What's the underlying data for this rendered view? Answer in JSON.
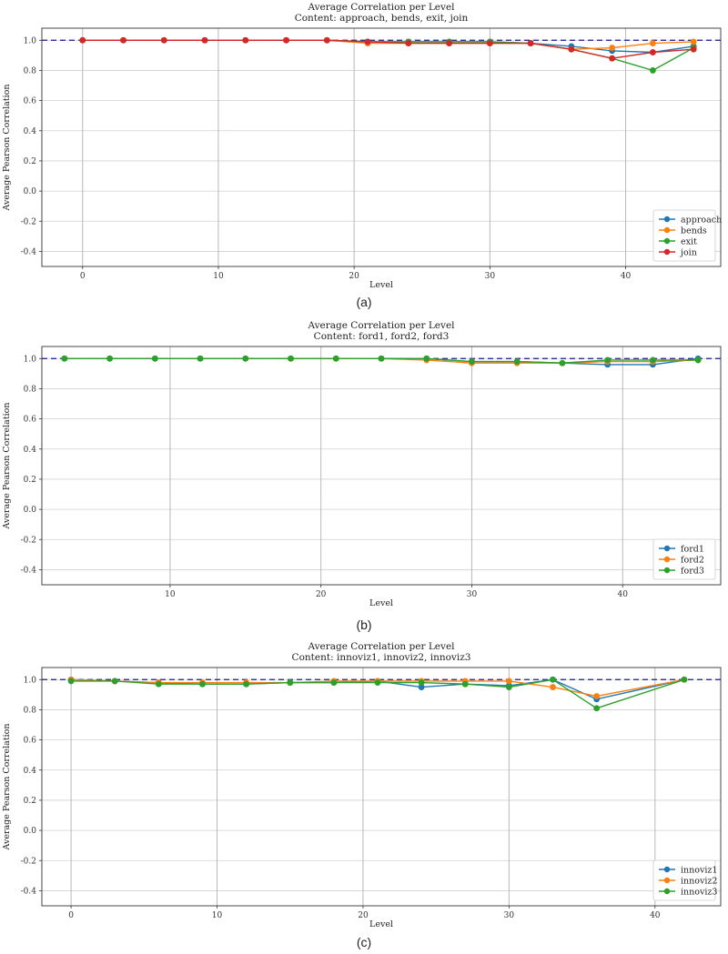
{
  "captions": [
    "(a)",
    "(b)",
    "(c)"
  ],
  "chart_data": [
    {
      "type": "line",
      "title": "Average Correlation per Level",
      "subtitle": "Content: approach, bends, exit, join",
      "xlabel": "Level",
      "ylabel": "Average Pearson Correlation",
      "xlim": [
        -3,
        47
      ],
      "ylim": [
        -0.5,
        1.08
      ],
      "xticks": [
        0,
        10,
        20,
        30,
        40
      ],
      "yticks": [
        -0.4,
        -0.2,
        0.0,
        0.2,
        0.4,
        0.6,
        0.8,
        1.0
      ],
      "ytick_labels": [
        "-0.4",
        "-0.2",
        "0.0",
        "0.2",
        "0.4",
        "0.6",
        "0.8",
        "1.0"
      ],
      "reference_line": 1.0,
      "grid": true,
      "legend_position": "lower right",
      "x": [
        0,
        3,
        6,
        9,
        12,
        15,
        18,
        21,
        24,
        27,
        30,
        33,
        36,
        39,
        42,
        45
      ],
      "series": [
        {
          "name": "approach",
          "color": "#1f77b4",
          "values": [
            1.0,
            1.0,
            1.0,
            1.0,
            1.0,
            1.0,
            1.0,
            0.99,
            0.99,
            0.99,
            0.99,
            0.98,
            0.96,
            0.93,
            0.92,
            0.96
          ]
        },
        {
          "name": "bends",
          "color": "#ff7f0e",
          "values": [
            1.0,
            1.0,
            1.0,
            1.0,
            1.0,
            1.0,
            1.0,
            0.98,
            0.98,
            0.98,
            0.98,
            0.98,
            0.94,
            0.95,
            0.98,
            0.99
          ]
        },
        {
          "name": "exit",
          "color": "#2ca02c",
          "values": [
            1.0,
            1.0,
            1.0,
            1.0,
            1.0,
            1.0,
            1.0,
            0.99,
            0.99,
            0.99,
            0.99,
            0.98,
            0.94,
            0.88,
            0.8,
            0.95
          ]
        },
        {
          "name": "join",
          "color": "#d62728",
          "values": [
            1.0,
            1.0,
            1.0,
            1.0,
            1.0,
            1.0,
            1.0,
            0.99,
            0.98,
            0.98,
            0.98,
            0.98,
            0.94,
            0.88,
            0.92,
            0.94
          ]
        }
      ]
    },
    {
      "type": "line",
      "title": "Average Correlation per Level",
      "subtitle": "Content: ford1, ford2, ford3",
      "xlabel": "Level",
      "ylabel": "Average Pearson Correlation",
      "xlim": [
        1.5,
        46.5
      ],
      "ylim": [
        -0.5,
        1.08
      ],
      "xticks": [
        10,
        20,
        30,
        40
      ],
      "yticks": [
        -0.4,
        -0.2,
        0.0,
        0.2,
        0.4,
        0.6,
        0.8,
        1.0
      ],
      "ytick_labels": [
        "-0.4",
        "-0.2",
        "0.0",
        "0.2",
        "0.4",
        "0.6",
        "0.8",
        "1.0"
      ],
      "reference_line": 1.0,
      "grid": true,
      "legend_position": "lower right",
      "x": [
        3,
        6,
        9,
        12,
        15,
        18,
        21,
        24,
        27,
        30,
        33,
        36,
        39,
        42,
        45
      ],
      "series": [
        {
          "name": "ford1",
          "color": "#1f77b4",
          "values": [
            1.0,
            1.0,
            1.0,
            1.0,
            1.0,
            1.0,
            1.0,
            1.0,
            1.0,
            0.98,
            0.98,
            0.97,
            0.96,
            0.96,
            1.0
          ]
        },
        {
          "name": "ford2",
          "color": "#ff7f0e",
          "values": [
            1.0,
            1.0,
            1.0,
            1.0,
            1.0,
            1.0,
            1.0,
            1.0,
            0.99,
            0.97,
            0.97,
            0.97,
            0.98,
            0.98,
            0.99
          ]
        },
        {
          "name": "ford3",
          "color": "#2ca02c",
          "values": [
            1.0,
            1.0,
            1.0,
            1.0,
            1.0,
            1.0,
            1.0,
            1.0,
            1.0,
            0.98,
            0.98,
            0.97,
            0.99,
            0.99,
            0.99
          ]
        }
      ]
    },
    {
      "type": "line",
      "title": "Average Correlation per Level",
      "subtitle": "Content: innoviz1, innoviz2, innoviz3",
      "xlabel": "Level",
      "ylabel": "Average Pearson Correlation",
      "xlim": [
        -2,
        44.5
      ],
      "ylim": [
        -0.5,
        1.08
      ],
      "xticks": [
        0,
        10,
        20,
        30,
        40
      ],
      "yticks": [
        -0.4,
        -0.2,
        0.0,
        0.2,
        0.4,
        0.6,
        0.8,
        1.0
      ],
      "ytick_labels": [
        "-0.4",
        "-0.2",
        "0.0",
        "0.2",
        "0.4",
        "0.6",
        "0.8",
        "1.0"
      ],
      "reference_line": 1.0,
      "grid": true,
      "legend_position": "lower right",
      "x": [
        0,
        3,
        6,
        9,
        12,
        15,
        18,
        21,
        24,
        27,
        30,
        33,
        36,
        42
      ],
      "series": [
        {
          "name": "innoviz1",
          "color": "#1f77b4",
          "values": [
            1.0,
            0.99,
            0.98,
            0.97,
            0.97,
            0.98,
            0.98,
            0.99,
            0.95,
            0.97,
            0.96,
            1.0,
            0.87,
            1.0
          ]
        },
        {
          "name": "innoviz2",
          "color": "#ff7f0e",
          "values": [
            1.0,
            0.99,
            0.98,
            0.98,
            0.98,
            0.98,
            0.99,
            0.99,
            0.99,
            0.99,
            0.99,
            0.95,
            0.89,
            1.0
          ]
        },
        {
          "name": "innoviz3",
          "color": "#2ca02c",
          "values": [
            0.99,
            0.99,
            0.97,
            0.97,
            0.97,
            0.98,
            0.98,
            0.98,
            0.98,
            0.97,
            0.95,
            1.0,
            0.81,
            1.0
          ]
        }
      ]
    }
  ]
}
